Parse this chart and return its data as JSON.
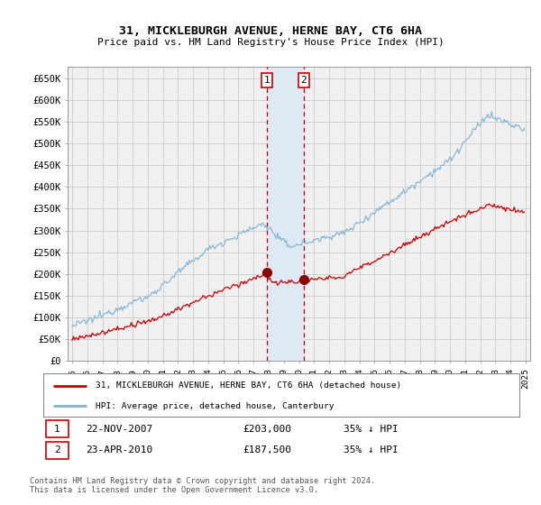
{
  "title_line1": "31, MICKLEBURGH AVENUE, HERNE BAY, CT6 6HA",
  "title_line2": "Price paid vs. HM Land Registry's House Price Index (HPI)",
  "ylabel_ticks": [
    "£0",
    "£50K",
    "£100K",
    "£150K",
    "£200K",
    "£250K",
    "£300K",
    "£350K",
    "£400K",
    "£450K",
    "£500K",
    "£550K",
    "£600K",
    "£650K"
  ],
  "ytick_values": [
    0,
    50000,
    100000,
    150000,
    200000,
    250000,
    300000,
    350000,
    400000,
    450000,
    500000,
    550000,
    600000,
    650000
  ],
  "ylim": [
    0,
    675000
  ],
  "xlim_start": 1994.7,
  "xlim_end": 2025.3,
  "sale1_date": 2007.89,
  "sale1_price": 203000,
  "sale2_date": 2010.31,
  "sale2_price": 187500,
  "hpi_color": "#7ab3d4",
  "price_color": "#cc0000",
  "vline_color": "#cc0000",
  "vshade_color": "#ddeaf5",
  "legend_line1": "31, MICKLEBURGH AVENUE, HERNE BAY, CT6 6HA (detached house)",
  "legend_line2": "HPI: Average price, detached house, Canterbury",
  "table_row1": [
    "1",
    "22-NOV-2007",
    "£203,000",
    "35% ↓ HPI"
  ],
  "table_row2": [
    "2",
    "23-APR-2010",
    "£187,500",
    "35% ↓ HPI"
  ],
  "footnote": "Contains HM Land Registry data © Crown copyright and database right 2024.\nThis data is licensed under the Open Government Licence v3.0.",
  "grid_color": "#cccccc",
  "background_color": "#ffffff",
  "plot_bg_color": "#f0f0f0"
}
